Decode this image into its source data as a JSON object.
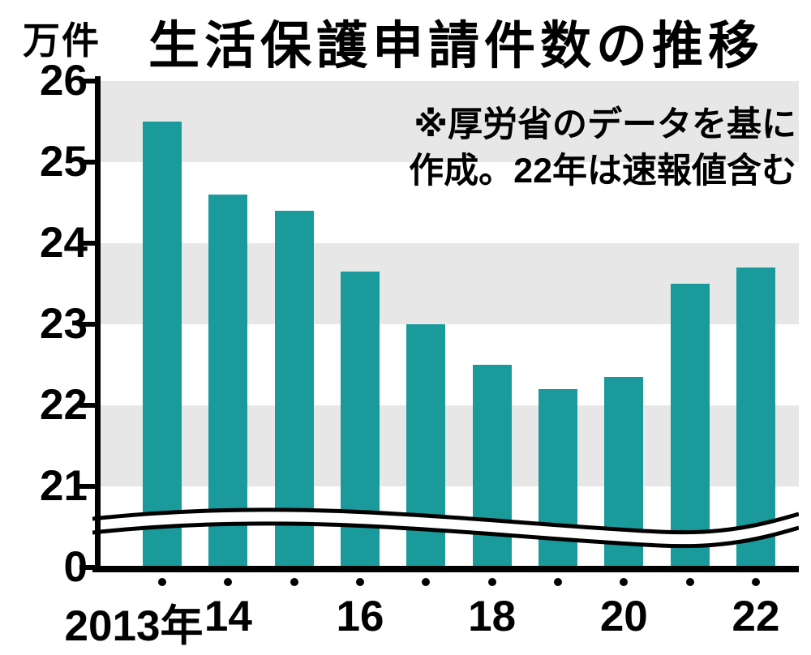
{
  "unit_label": "万件",
  "title": "生活保護申請件数の推移",
  "note_line1": "※厚労省のデータを基に",
  "note_line2": "作成。22年は速報値含む",
  "chart_data": {
    "type": "bar",
    "title": "生活保護申請件数の推移",
    "unit": "万件",
    "note": "※厚労省のデータを基に作成。22年は速報値含む",
    "categories": [
      "2013",
      "2014",
      "2015",
      "2016",
      "2017",
      "2018",
      "2019",
      "2020",
      "2021",
      "2022"
    ],
    "values": [
      25.5,
      24.6,
      24.4,
      23.65,
      23.0,
      22.5,
      22.2,
      22.35,
      23.5,
      23.7
    ],
    "ylabel": "万件",
    "y_ticks": [
      26,
      25,
      24,
      23,
      22,
      21,
      0
    ],
    "ylim_display": [
      21,
      26
    ],
    "axis_break": true,
    "grid": "striped-bands",
    "gray_bands": [
      [
        25,
        26
      ],
      [
        23,
        24
      ],
      [
        21,
        22
      ]
    ],
    "legend": "none",
    "bar_color": "#1b9a9b",
    "stripe_color": "#e7e7e7",
    "x_tick_labels": [
      {
        "text": "2013年",
        "bar_index": 0,
        "dx": -35
      },
      {
        "text": "14",
        "bar_index": 1,
        "dx": 0
      },
      {
        "text": "16",
        "bar_index": 3,
        "dx": 0
      },
      {
        "text": "18",
        "bar_index": 5,
        "dx": 0
      },
      {
        "text": "20",
        "bar_index": 7,
        "dx": 0
      },
      {
        "text": "22",
        "bar_index": 9,
        "dx": 0
      }
    ]
  }
}
